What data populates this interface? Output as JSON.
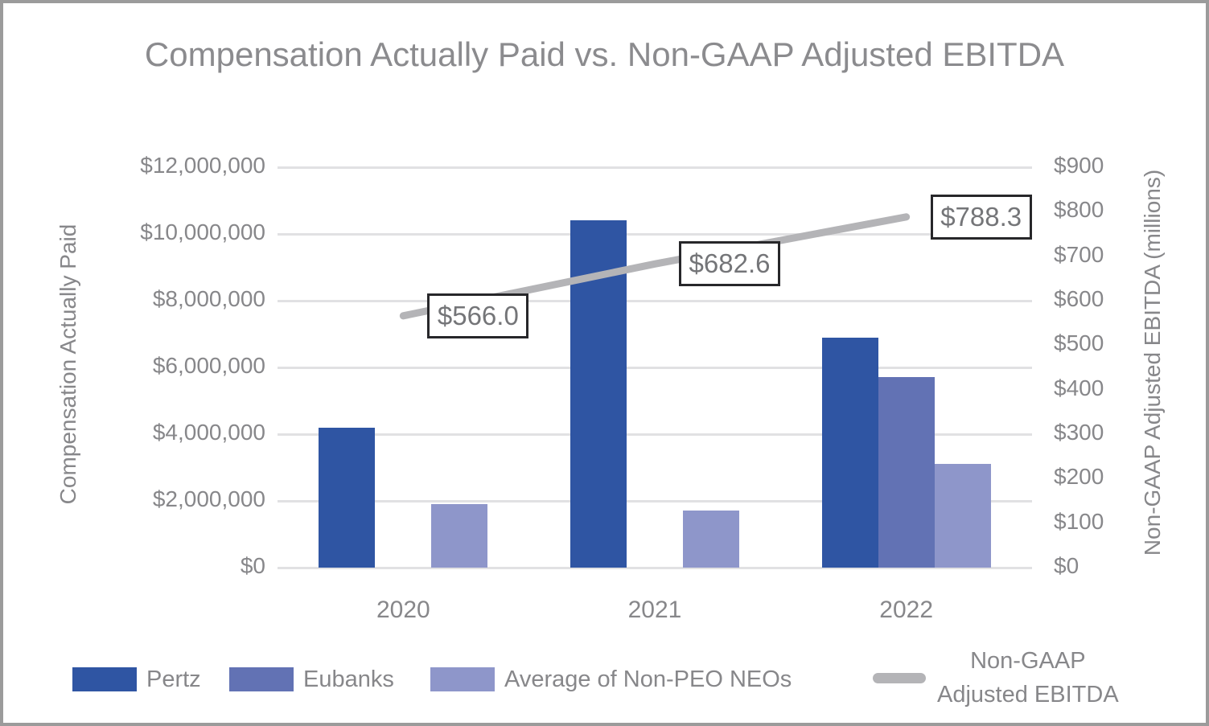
{
  "frame": {
    "border_color": "#9b9b9b",
    "background": "#ffffff"
  },
  "chart_data": {
    "type": "bar",
    "title": "Compensation Actually Paid vs. Non-GAAP Adjusted EBITDA",
    "categories": [
      "2020",
      "2021",
      "2022"
    ],
    "bar_series": [
      {
        "name": "Pertz",
        "color": "#2f55a3",
        "values": [
          4200000,
          10400000,
          6900000
        ]
      },
      {
        "name": "Eubanks",
        "color": "#6272b4",
        "values": [
          null,
          null,
          5700000
        ]
      },
      {
        "name": "Average of Non-PEO NEOs",
        "color": "#8e96ca",
        "values": [
          1900000,
          1700000,
          3100000
        ]
      }
    ],
    "line_series": {
      "name": "Non-GAAP Adjusted EBITDA",
      "color": "#b4b4b7",
      "axis": "right",
      "values": [
        566.0,
        682.6,
        788.3
      ],
      "data_labels": [
        "$566.0",
        "$682.6",
        "$788.3"
      ]
    },
    "left_axis": {
      "title": "Compensation Actually Paid",
      "min": 0,
      "max": 12000000,
      "step": 2000000,
      "tick_labels": [
        "$0",
        "$2,000,000",
        "$4,000,000",
        "$6,000,000",
        "$8,000,000",
        "$10,000,000",
        "$12,000,000"
      ]
    },
    "right_axis": {
      "title": "Non-GAAP Adjusted EBITDA (millions)",
      "min": 0,
      "max": 900,
      "step": 100,
      "tick_labels": [
        "$0",
        "$100",
        "$200",
        "$300",
        "$400",
        "$500",
        "$600",
        "$700",
        "$800",
        "$900"
      ]
    },
    "grid": "horizontal",
    "legend": {
      "position": "bottom",
      "items": [
        {
          "label": "Pertz",
          "color": "#2f55a3",
          "marker": "rect"
        },
        {
          "label": "Eubanks",
          "color": "#6272b4",
          "marker": "rect"
        },
        {
          "label": "Average of Non-PEO NEOs",
          "color": "#8e96ca",
          "marker": "rect"
        },
        {
          "label": "Non-GAAP Adjusted EBITDA",
          "label_lines": [
            "Non-GAAP",
            "Adjusted EBITDA"
          ],
          "color": "#b4b4b7",
          "marker": "line"
        }
      ]
    },
    "gridline_color": "#e1e1e3",
    "data_label_text_color": "#747578",
    "data_label_border_color": "#27272a"
  }
}
